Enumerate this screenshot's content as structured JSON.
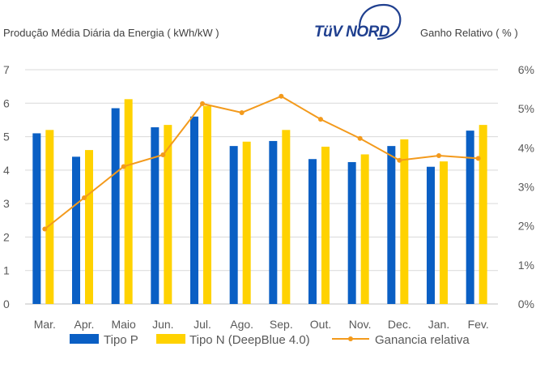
{
  "colors": {
    "series_p": "#0a5fc4",
    "series_n": "#ffd200",
    "line": "#f39a1c",
    "grid": "#d9d9d9",
    "axis_text": "#595959",
    "logo": "#1f3f8f"
  },
  "logo": {
    "text": "TüV NORD",
    "icon": "tuv-nord-logo"
  },
  "chart_data": {
    "type": "bar",
    "ylabel_left": "Produção Média Diária da Energia ( kWh/kW )",
    "ylabel_right": "Ganho Relativo ( % )",
    "categories": [
      "Mar.",
      "Apr.",
      "Maio",
      "Jun.",
      "Jul.",
      "Ago.",
      "Sep.",
      "Out.",
      "Nov.",
      "Dec.",
      "Jan.",
      "Fev."
    ],
    "y_left": {
      "min": 0,
      "max": 7,
      "ticks": [
        "0",
        "1",
        "2",
        "3",
        "4",
        "5",
        "6",
        "7"
      ]
    },
    "y_right": {
      "min": 0,
      "max": 6,
      "ticks": [
        "0%",
        "1%",
        "2%",
        "3%",
        "4%",
        "5%",
        "6%"
      ]
    },
    "grid": true,
    "legend_position": "bottom",
    "series": [
      {
        "name": "Tipo P",
        "type": "bar",
        "axis": "left",
        "values": [
          5.1,
          4.4,
          5.85,
          5.28,
          5.6,
          4.72,
          4.87,
          4.33,
          4.24,
          4.72,
          4.1,
          5.18
        ]
      },
      {
        "name": "Tipo N (DeepBlue 4.0)",
        "type": "bar",
        "axis": "left",
        "values": [
          5.2,
          4.6,
          6.12,
          5.35,
          5.92,
          4.85,
          5.2,
          4.7,
          4.47,
          4.92,
          4.26,
          5.35
        ]
      },
      {
        "name": "Ganancia relativa",
        "type": "line",
        "axis": "right",
        "values": [
          1.92,
          2.72,
          3.52,
          3.82,
          5.13,
          4.9,
          5.32,
          4.73,
          4.24,
          3.68,
          3.8,
          3.73
        ]
      }
    ]
  }
}
